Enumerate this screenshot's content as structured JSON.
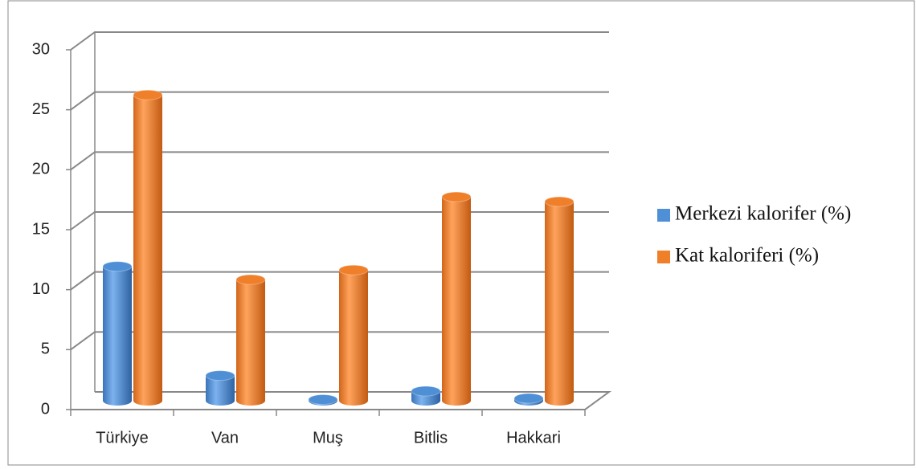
{
  "chart_data": {
    "type": "bar3d",
    "categories": [
      "Türkiye",
      "Van",
      "Muş",
      "Bitlis",
      "Hakkari"
    ],
    "series": [
      {
        "name": "Merkezi kalorifer (%)",
        "color": "#4f8fd6",
        "values": [
          11.2,
          2.1,
          0.1,
          0.8,
          0.2
        ]
      },
      {
        "name": "Kat kaloriferi (%)",
        "color": "#f07f2a",
        "values": [
          25.5,
          10.1,
          10.9,
          17.0,
          16.6
        ]
      }
    ],
    "ylim": [
      0,
      30
    ],
    "yticks": [
      0,
      5,
      10,
      15,
      20,
      25,
      30
    ],
    "grid": true
  }
}
